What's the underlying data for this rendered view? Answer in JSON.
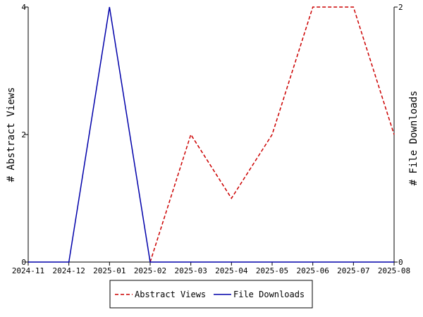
{
  "chart_data": {
    "type": "line",
    "title": "",
    "x": [
      "2024-11",
      "2024-12",
      "2025-01",
      "2025-02",
      "2025-03",
      "2025-04",
      "2025-05",
      "2025-06",
      "2025-07",
      "2025-08"
    ],
    "xlabel": "",
    "y_left": {
      "label": "# Abstract Views",
      "range": [
        0,
        4
      ],
      "ticks": [
        "0",
        "2",
        "4"
      ]
    },
    "y_right": {
      "label": "# File Downloads",
      "range": [
        0,
        2
      ],
      "ticks": [
        "0",
        "2"
      ]
    },
    "series": [
      {
        "name": "Abstract Views",
        "axis": "left",
        "color": "#cc0000",
        "dash": "dashed",
        "x": [
          "2025-02",
          "2025-03",
          "2025-04",
          "2025-05",
          "2025-06",
          "2025-07",
          "2025-08"
        ],
        "values": [
          0,
          2,
          1,
          2,
          4,
          4,
          2
        ]
      },
      {
        "name": "File Downloads",
        "axis": "right",
        "color": "#0000aa",
        "dash": "solid",
        "x": [
          "2024-11",
          "2024-12",
          "2025-01",
          "2025-02",
          "2025-03",
          "2025-04",
          "2025-05",
          "2025-06",
          "2025-07",
          "2025-08"
        ],
        "values": [
          0,
          0,
          2,
          0,
          0,
          0,
          0,
          0,
          0,
          0
        ]
      }
    ],
    "grid": false,
    "legend_position": "bottom-center"
  }
}
